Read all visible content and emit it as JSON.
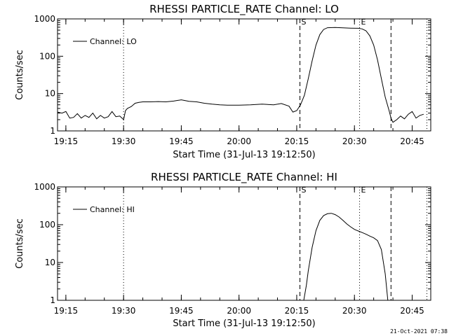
{
  "timestamp": "21-Oct-2021 07:38",
  "chart_data": [
    {
      "type": "line",
      "title": "RHESSI PARTICLE_RATE Channel: LO",
      "xlabel": "Start Time (31-Jul-13 19:12:50)",
      "ylabel": "Counts/sec",
      "yscale": "log",
      "ylim": [
        1,
        1000
      ],
      "xlim_minutes_after_start": [
        0,
        97
      ],
      "xticks": [
        "19:15",
        "19:30",
        "19:45",
        "20:00",
        "20:15",
        "20:30",
        "20:45"
      ],
      "yticks": [
        "1",
        "10",
        "100",
        "1000"
      ],
      "legend": {
        "position": "upper-left",
        "entries": [
          "Channel: LO"
        ]
      },
      "markers": [
        {
          "label": "S",
          "time": "20:15:50",
          "style": "dashed"
        },
        {
          "label": "E",
          "time": "20:31:20",
          "style": "dotted"
        },
        {
          "label": "",
          "time": "20:39:30",
          "style": "dashed"
        },
        {
          "label": "",
          "time": "20:48:50",
          "style": "dotted"
        },
        {
          "label": "",
          "time": "19:30:00",
          "style": "dotted"
        }
      ],
      "series": [
        {
          "name": "Channel: LO",
          "points": [
            [
              "19:12:50",
              3.2
            ],
            [
              "19:14:00",
              3.0
            ],
            [
              "19:15:00",
              3.3
            ],
            [
              "19:16:00",
              2.2
            ],
            [
              "19:17:00",
              2.3
            ],
            [
              "19:18:00",
              2.9
            ],
            [
              "19:19:00",
              2.2
            ],
            [
              "19:20:00",
              2.6
            ],
            [
              "19:21:00",
              2.3
            ],
            [
              "19:22:00",
              3.0
            ],
            [
              "19:23:00",
              2.1
            ],
            [
              "19:24:00",
              2.6
            ],
            [
              "19:25:00",
              2.2
            ],
            [
              "19:26:00",
              2.4
            ],
            [
              "19:27:00",
              3.3
            ],
            [
              "19:28:00",
              2.4
            ],
            [
              "19:29:00",
              2.5
            ],
            [
              "19:30:00",
              2.0
            ],
            [
              "19:30:30",
              3.5
            ],
            [
              "19:31:00",
              4.0
            ],
            [
              "19:32:00",
              4.5
            ],
            [
              "19:33:00",
              5.5
            ],
            [
              "19:34:00",
              5.8
            ],
            [
              "19:35:00",
              6.0
            ],
            [
              "19:37:00",
              6.0
            ],
            [
              "19:39:00",
              6.1
            ],
            [
              "19:41:00",
              6.0
            ],
            [
              "19:43:00",
              6.3
            ],
            [
              "19:45:00",
              6.8
            ],
            [
              "19:47:00",
              6.2
            ],
            [
              "19:49:00",
              6.0
            ],
            [
              "19:51:00",
              5.5
            ],
            [
              "19:53:00",
              5.2
            ],
            [
              "19:55:00",
              5.0
            ],
            [
              "19:57:00",
              4.9
            ],
            [
              "20:00:00",
              4.9
            ],
            [
              "20:03:00",
              5.0
            ],
            [
              "20:06:00",
              5.2
            ],
            [
              "20:09:00",
              5.0
            ],
            [
              "20:11:00",
              5.4
            ],
            [
              "20:13:00",
              4.6
            ],
            [
              "20:14:00",
              3.2
            ],
            [
              "20:15:00",
              3.5
            ],
            [
              "20:16:00",
              5.0
            ],
            [
              "20:17:00",
              9.0
            ],
            [
              "20:18:00",
              25
            ],
            [
              "20:19:00",
              75
            ],
            [
              "20:20:00",
              200
            ],
            [
              "20:21:00",
              380
            ],
            [
              "20:22:00",
              520
            ],
            [
              "20:23:00",
              580
            ],
            [
              "20:25:00",
              590
            ],
            [
              "20:27:00",
              575
            ],
            [
              "20:29:00",
              565
            ],
            [
              "20:31:00",
              560
            ],
            [
              "20:32:00",
              540
            ],
            [
              "20:33:00",
              480
            ],
            [
              "20:34:00",
              350
            ],
            [
              "20:35:00",
              200
            ],
            [
              "20:36:00",
              80
            ],
            [
              "20:37:00",
              25
            ],
            [
              "20:38:00",
              8.0
            ],
            [
              "20:39:00",
              3.5
            ],
            [
              "20:39:30",
              2.2
            ],
            [
              "20:40:00",
              1.7
            ],
            [
              "20:41:00",
              2.0
            ],
            [
              "20:42:00",
              2.5
            ],
            [
              "20:43:00",
              2.1
            ],
            [
              "20:44:00",
              2.8
            ],
            [
              "20:45:00",
              3.3
            ],
            [
              "20:46:00",
              2.2
            ],
            [
              "20:47:00",
              2.6
            ],
            [
              "20:48:00",
              2.8
            ]
          ]
        }
      ]
    },
    {
      "type": "line",
      "title": "RHESSI PARTICLE_RATE Channel: HI",
      "xlabel": "Start Time (31-Jul-13 19:12:50)",
      "ylabel": "Counts/sec",
      "yscale": "log",
      "ylim": [
        1,
        1000
      ],
      "xlim_minutes_after_start": [
        0,
        97
      ],
      "xticks": [
        "19:15",
        "19:30",
        "19:45",
        "20:00",
        "20:15",
        "20:30",
        "20:45"
      ],
      "yticks": [
        "1",
        "10",
        "100",
        "1000"
      ],
      "legend": {
        "position": "upper-left",
        "entries": [
          "Channel: HI"
        ]
      },
      "markers": [
        {
          "label": "S",
          "time": "20:15:50",
          "style": "dashed"
        },
        {
          "label": "E",
          "time": "20:31:20",
          "style": "dotted"
        },
        {
          "label": "",
          "time": "20:39:30",
          "style": "dashed"
        },
        {
          "label": "",
          "time": "20:48:50",
          "style": "dotted"
        },
        {
          "label": "",
          "time": "19:30:00",
          "style": "dotted"
        }
      ],
      "series": [
        {
          "name": "Channel: HI",
          "points": [
            [
              "20:16:50",
              1.0
            ],
            [
              "20:17:30",
              2.5
            ],
            [
              "20:18:00",
              6.0
            ],
            [
              "20:19:00",
              25
            ],
            [
              "20:20:00",
              70
            ],
            [
              "20:21:00",
              130
            ],
            [
              "20:22:00",
              175
            ],
            [
              "20:23:00",
              195
            ],
            [
              "20:24:00",
              200
            ],
            [
              "20:25:00",
              185
            ],
            [
              "20:26:00",
              160
            ],
            [
              "20:27:00",
              130
            ],
            [
              "20:28:00",
              105
            ],
            [
              "20:29:00",
              88
            ],
            [
              "20:30:00",
              75
            ],
            [
              "20:31:00",
              68
            ],
            [
              "20:32:00",
              62
            ],
            [
              "20:33:00",
              56
            ],
            [
              "20:34:00",
              50
            ],
            [
              "20:35:00",
              45
            ],
            [
              "20:36:00",
              38
            ],
            [
              "20:37:00",
              22
            ],
            [
              "20:38:00",
              5.0
            ],
            [
              "20:38:40",
              1.0
            ]
          ]
        }
      ]
    }
  ]
}
